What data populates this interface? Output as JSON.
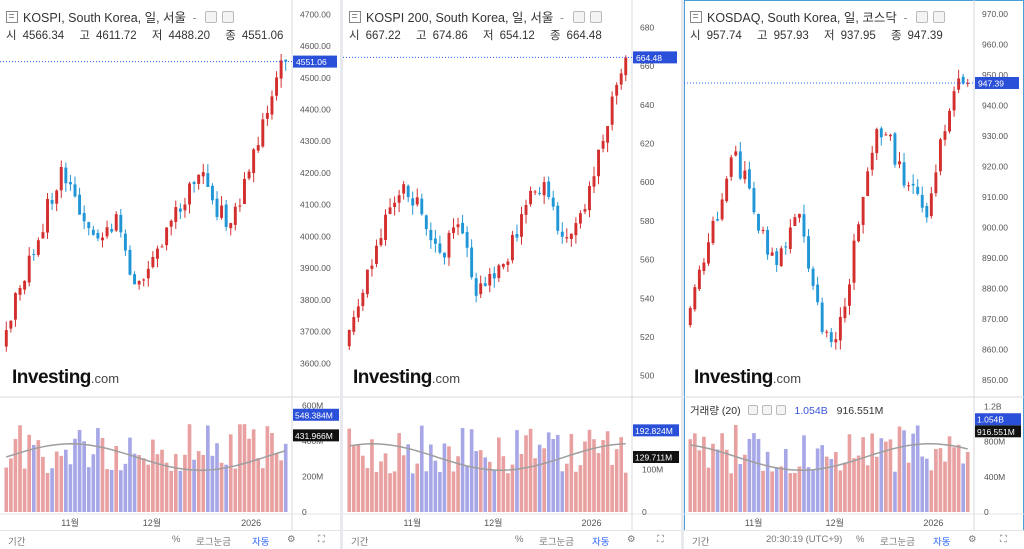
{
  "panels": [
    {
      "title": "KOSPI, South Korea, 일, 서울",
      "title_suffix": "-",
      "open_label": "시",
      "open": "4566.34",
      "high_label": "고",
      "high": "4611.72",
      "low_label": "저",
      "low": "4488.20",
      "close_label": "종",
      "close": "4551.06",
      "price_min": 3500,
      "price_max": 4720,
      "price_ticks": [
        "4700.00",
        "4600.00",
        "4500.00",
        "4400.00",
        "4300.00",
        "4200.00",
        "4100.00",
        "4000.00",
        "3900.00",
        "3800.00",
        "3700.00",
        "3600.00"
      ],
      "price_tick_values": [
        4700,
        4600,
        4500,
        4400,
        4300,
        4200,
        4100,
        4000,
        3900,
        3800,
        3700,
        3600
      ],
      "last_price_tag": "4551.06",
      "last_price": 4551.06,
      "start_price": 3650,
      "drift": [
        3700,
        3850,
        3950,
        4100,
        4200,
        4120,
        4000,
        3980,
        4080,
        3860,
        3900,
        3950,
        4050,
        4150,
        4200,
        4080,
        4050,
        4150,
        4300,
        4450,
        4600
      ],
      "vol_ticks": [
        "600M",
        "400M",
        "200M",
        "0"
      ],
      "vol_tick_values": [
        600,
        400,
        200,
        0
      ],
      "vol_max": 620,
      "vol_tag_1": "548.384M",
      "vol_tag_1_value": 548,
      "vol_tag_2": "431.966M",
      "vol_tag_2_value": 432,
      "vol_legend_name": "",
      "vol_legend_v1": "",
      "vol_legend_v2": "",
      "time_labels": [
        "11월",
        "12월",
        "2026"
      ],
      "bottom_period": "기간",
      "bottom_percent": "%",
      "bottom_log": "로그눈금",
      "bottom_auto": "자동",
      "bottom_time": "",
      "logo_main": "Investing",
      "logo_suffix": ".com"
    },
    {
      "title": "KOSPI 200, South Korea, 일, 서울",
      "title_suffix": "-",
      "open_label": "시",
      "open": "667.22",
      "high_label": "고",
      "high": "674.86",
      "low_label": "저",
      "low": "654.12",
      "close_label": "종",
      "close": "664.48",
      "price_min": 490,
      "price_max": 690,
      "price_ticks": [
        "680",
        "660",
        "640",
        "620",
        "600",
        "580",
        "560",
        "540",
        "520",
        "500"
      ],
      "price_tick_values": [
        680,
        660,
        640,
        620,
        600,
        580,
        560,
        540,
        520,
        500
      ],
      "last_price_tag": "664.48",
      "last_price": 664.48,
      "start_price": 515,
      "drift": [
        522,
        545,
        565,
        592,
        600,
        588,
        570,
        565,
        585,
        545,
        548,
        555,
        572,
        590,
        598,
        580,
        572,
        585,
        612,
        640,
        665
      ],
      "vol_ticks": [
        "100M",
        "0"
      ],
      "vol_tick_values": [
        100,
        0
      ],
      "vol_max": 260,
      "vol_tag_1": "192.824M",
      "vol_tag_1_value": 193,
      "vol_tag_2": "129.711M",
      "vol_tag_2_value": 130,
      "vol_legend_name": "",
      "vol_legend_v1": "",
      "vol_legend_v2": "",
      "time_labels": [
        "11월",
        "12월",
        "2026"
      ],
      "bottom_period": "기간",
      "bottom_percent": "%",
      "bottom_log": "로그눈금",
      "bottom_auto": "자동",
      "bottom_time": "",
      "logo_main": "Investing",
      "logo_suffix": ".com"
    },
    {
      "title": "KOSDAQ, South Korea, 일, 코스닥",
      "title_suffix": "-",
      "open_label": "시",
      "open": "957.74",
      "high_label": "고",
      "high": "957.93",
      "low_label": "저",
      "low": "937.95",
      "close_label": "종",
      "close": "947.39",
      "price_min": 845,
      "price_max": 972,
      "price_ticks": [
        "970.00",
        "960.00",
        "950.00",
        "940.00",
        "930.00",
        "920.00",
        "910.00",
        "900.00",
        "890.00",
        "880.00",
        "870.00",
        "860.00",
        "850.00"
      ],
      "price_tick_values": [
        970,
        960,
        950,
        940,
        930,
        920,
        910,
        900,
        890,
        880,
        870,
        860,
        850
      ],
      "last_price_tag": "947.39",
      "last_price": 947.39,
      "start_price": 868,
      "drift": [
        872,
        890,
        905,
        925,
        915,
        900,
        888,
        895,
        905,
        875,
        862,
        870,
        898,
        925,
        935,
        920,
        912,
        905,
        928,
        945,
        950
      ],
      "vol_ticks": [
        "1.2B",
        "800M",
        "400M",
        "0"
      ],
      "vol_tick_values": [
        1200,
        800,
        400,
        0
      ],
      "vol_max": 1250,
      "vol_tag_1": "1.054B",
      "vol_tag_1_value": 1054,
      "vol_tag_2": "916.551M",
      "vol_tag_2_value": 917,
      "vol_legend_name": "거래량 (20)",
      "vol_legend_v1": "1.054B",
      "vol_legend_v2": "916.551M",
      "time_labels": [
        "11월",
        "12월",
        "2026"
      ],
      "bottom_period": "기간",
      "bottom_percent": "%",
      "bottom_log": "로그눈금",
      "bottom_auto": "자동",
      "bottom_time": "20:30:19 (UTC+9)",
      "logo_main": "Investing",
      "logo_suffix": ".com"
    }
  ],
  "colors": {
    "up": "#d32f2f",
    "down": "#2196d6",
    "vol_up": "#e8a0a0",
    "vol_down": "#a7a7e8",
    "ma": "#9e9e9e",
    "last_line": "#2962ff",
    "tag_bg": "#2a4fd8",
    "tag_dark": "#111111"
  }
}
